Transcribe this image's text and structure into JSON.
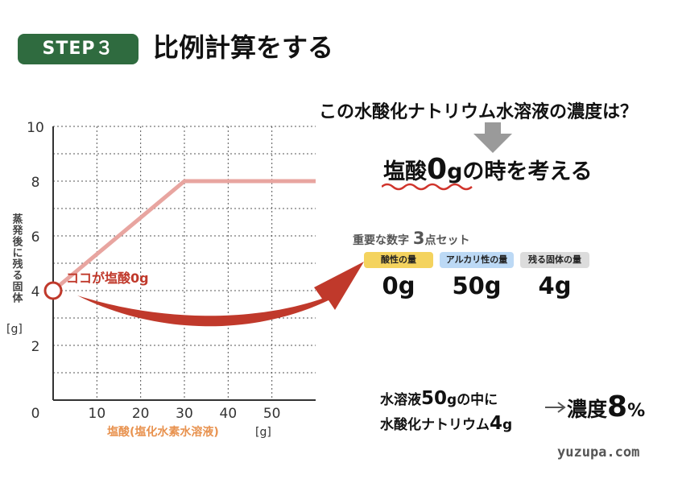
{
  "header": {
    "step_badge": "STEP３",
    "title": "比例計算をする"
  },
  "question": "この水酸化ナトリウム水溶液の濃度は？",
  "focus": {
    "prefix": "塩酸",
    "value": "0",
    "unit": "g",
    "suffix": "の時を考える"
  },
  "chart_data": {
    "type": "line",
    "title": "",
    "ylabel": "蒸発後に残る固体",
    "yunit": "[g]",
    "xlabel": "塩酸(塩化水素水溶液)",
    "xunit": "[g]",
    "xlim": [
      0,
      60
    ],
    "ylim": [
      0,
      10
    ],
    "x_ticks": [
      0,
      10,
      20,
      30,
      40,
      50
    ],
    "y_ticks": [
      2,
      4,
      6,
      8,
      10
    ],
    "grid": true,
    "series": [
      {
        "x": [
          0,
          30,
          60
        ],
        "y": [
          4,
          8,
          8
        ]
      }
    ],
    "annotation": "ココが塩酸0g",
    "annotation_point": [
      0,
      4
    ],
    "colors": {
      "line": "#e8a5a0",
      "marker": "#c0392b",
      "arrow": "#c0392b",
      "xlabel": "#e8924f"
    }
  },
  "key_numbers": {
    "caption_prefix": "重要な数字",
    "caption_count": "3",
    "caption_suffix": "点セット",
    "items": [
      {
        "label": "酸性の量",
        "value": "0g",
        "color": "#f4d35e"
      },
      {
        "label": "アルカリ性の量",
        "value": "50g",
        "color": "#bcd9f5"
      },
      {
        "label": "残る固体の量",
        "value": "4g",
        "color": "#dcdcdc"
      }
    ]
  },
  "conclusion": {
    "line1_prefix": "水溶液",
    "line1_value": "50",
    "line1_unit": "g",
    "line1_suffix": "の中に",
    "line2_prefix": "水酸化ナトリウム",
    "line2_value": "4",
    "line2_unit": "g",
    "result_label": "濃度",
    "result_value": "8",
    "result_unit": "%"
  },
  "brand": "yuzupa.com"
}
